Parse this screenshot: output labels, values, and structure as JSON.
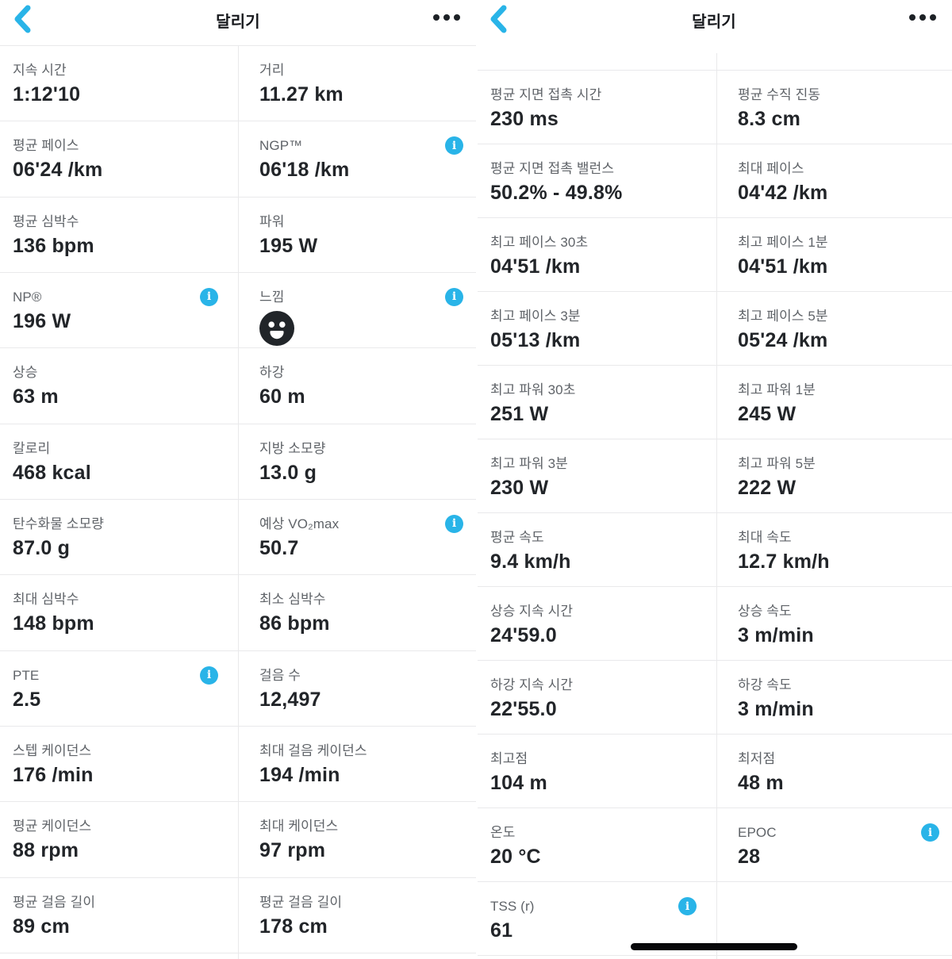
{
  "colors": {
    "accent_blue": "#29b4e8",
    "label_text": "#5f6368",
    "value_text": "#222529",
    "divider": "#e9e9eb",
    "home_indicator": "#08080a",
    "smiley": "#212529"
  },
  "panels": [
    {
      "side": "left",
      "header": {
        "back_icon": "chevron-left",
        "title": "달리기",
        "menu_icon": "ellipsis"
      },
      "rows": [
        [
          {
            "label": "지속 시간",
            "value": "1:12'10"
          },
          {
            "label": "거리",
            "value": "11.27 km"
          }
        ],
        [
          {
            "label": "평균 페이스",
            "value": "06'24 /km"
          },
          {
            "label": "NGP™",
            "value": "06'18 /km",
            "info": true
          }
        ],
        [
          {
            "label": "평균 심박수",
            "value": "136 bpm"
          },
          {
            "label": "파워",
            "value": "195 W"
          }
        ],
        [
          {
            "label": "NP®",
            "value": "196 W",
            "info": true
          },
          {
            "label": "느낌",
            "emoji": "smiley-face",
            "info": true
          }
        ],
        [
          {
            "label": "상승",
            "value": "63 m"
          },
          {
            "label": "하강",
            "value": "60 m"
          }
        ],
        [
          {
            "label": "칼로리",
            "value": "468 kcal"
          },
          {
            "label": "지방 소모량",
            "value": "13.0 g"
          }
        ],
        [
          {
            "label": "탄수화물 소모량",
            "value": "87.0 g"
          },
          {
            "label": "예상 VO₂max",
            "value": "50.7",
            "info": true
          }
        ],
        [
          {
            "label": "최대 심박수",
            "value": "148 bpm"
          },
          {
            "label": "최소 심박수",
            "value": "86 bpm"
          }
        ],
        [
          {
            "label": "PTE",
            "value": "2.5",
            "info": true
          },
          {
            "label": "걸음 수",
            "value": "12,497"
          }
        ],
        [
          {
            "label": "스텝 케이던스",
            "value": "176 /min"
          },
          {
            "label": "최대 걸음 케이던스",
            "value": "194 /min"
          }
        ],
        [
          {
            "label": "평균 케이던스",
            "value": "88 rpm"
          },
          {
            "label": "최대 케이던스",
            "value": "97 rpm"
          }
        ],
        [
          {
            "label": "평균 걸음 길이",
            "value": "89 cm"
          },
          {
            "label": "평균 걸음 길이",
            "value": "178 cm"
          }
        ]
      ],
      "has_home_indicator": false
    },
    {
      "side": "right",
      "header": {
        "back_icon": "chevron-left",
        "title": "달리기",
        "menu_icon": "ellipsis"
      },
      "rows": [
        [
          {
            "label": "평균 지면 접촉 시간",
            "value": "230 ms"
          },
          {
            "label": "평균 수직 진동",
            "value": "8.3 cm"
          }
        ],
        [
          {
            "label": "평균 지면 접촉 밸런스",
            "value": "50.2% - 49.8%"
          },
          {
            "label": "최대 페이스",
            "value": "04'42 /km"
          }
        ],
        [
          {
            "label": "최고 페이스 30초",
            "value": "04'51 /km"
          },
          {
            "label": "최고 페이스 1분",
            "value": "04'51 /km"
          }
        ],
        [
          {
            "label": "최고 페이스 3분",
            "value": "05'13 /km"
          },
          {
            "label": "최고 페이스 5분",
            "value": "05'24 /km"
          }
        ],
        [
          {
            "label": "최고 파워 30초",
            "value": "251 W"
          },
          {
            "label": "최고 파워 1분",
            "value": "245 W"
          }
        ],
        [
          {
            "label": "최고 파워 3분",
            "value": "230 W"
          },
          {
            "label": "최고 파워 5분",
            "value": "222 W"
          }
        ],
        [
          {
            "label": "평균 속도",
            "value": "9.4 km/h"
          },
          {
            "label": "최대 속도",
            "value": "12.7 km/h"
          }
        ],
        [
          {
            "label": "상승 지속 시간",
            "value": "24'59.0"
          },
          {
            "label": "상승 속도",
            "value": "3 m/min"
          }
        ],
        [
          {
            "label": "하강 지속 시간",
            "value": "22'55.0"
          },
          {
            "label": "하강 속도",
            "value": "3 m/min"
          }
        ],
        [
          {
            "label": "최고점",
            "value": "104 m"
          },
          {
            "label": "최저점",
            "value": "48 m"
          }
        ],
        [
          {
            "label": "온도",
            "value": "20 °C"
          },
          {
            "label": "EPOC",
            "value": "28",
            "info": true
          }
        ],
        [
          {
            "label": "TSS (r)",
            "value": "61",
            "info": true
          },
          null
        ]
      ],
      "has_home_indicator": true
    }
  ]
}
